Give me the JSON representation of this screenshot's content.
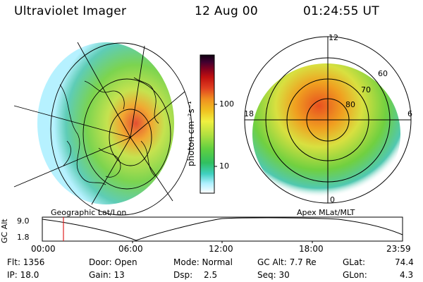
{
  "header": {
    "instrument": "Ultraviolet Imager",
    "date": "12 Aug 00",
    "time": "01:24:55 UT"
  },
  "colorbar": {
    "label": "photon cm⁻²s⁻¹",
    "tick_100": "100",
    "tick_10": "10",
    "colors": [
      "#ffffff",
      "#b0f0ff",
      "#40d0c0",
      "#30c060",
      "#60d040",
      "#b0e040",
      "#f0f040",
      "#f0c020",
      "#f09020",
      "#e04020",
      "#c01010",
      "#800020",
      "#400030",
      "#100010"
    ]
  },
  "left_map": {
    "caption": "Geographic Lat/Lon"
  },
  "right_map": {
    "caption": "Apex MLat/MLT",
    "mlt_labels": {
      "top": "12",
      "left": "18",
      "right": "6",
      "bottom": "0"
    },
    "lat_labels": [
      "60",
      "70",
      "80"
    ]
  },
  "altitude_plot": {
    "ylabel": "GC Alt",
    "ymax": "9.0",
    "ymin": "1.8",
    "xticks": [
      "00:00",
      "06:00",
      "12:00",
      "18:00",
      "23:59"
    ],
    "marker_time": "01:24:55"
  },
  "status": {
    "flt": "Flt: 1356",
    "ip": "IP: 18.0",
    "door": "Door: Open",
    "gain": "Gain: 13",
    "mode": "Mode: Normal",
    "dsp_label": "Dsp:",
    "dsp_value": "2.5",
    "gcalt": "GC Alt: 7.7 Re",
    "seq": "Seq: 30",
    "glat_label": "GLat:",
    "glat_value": "74.4",
    "glon_label": "GLon:",
    "glon_value": "4.3"
  }
}
